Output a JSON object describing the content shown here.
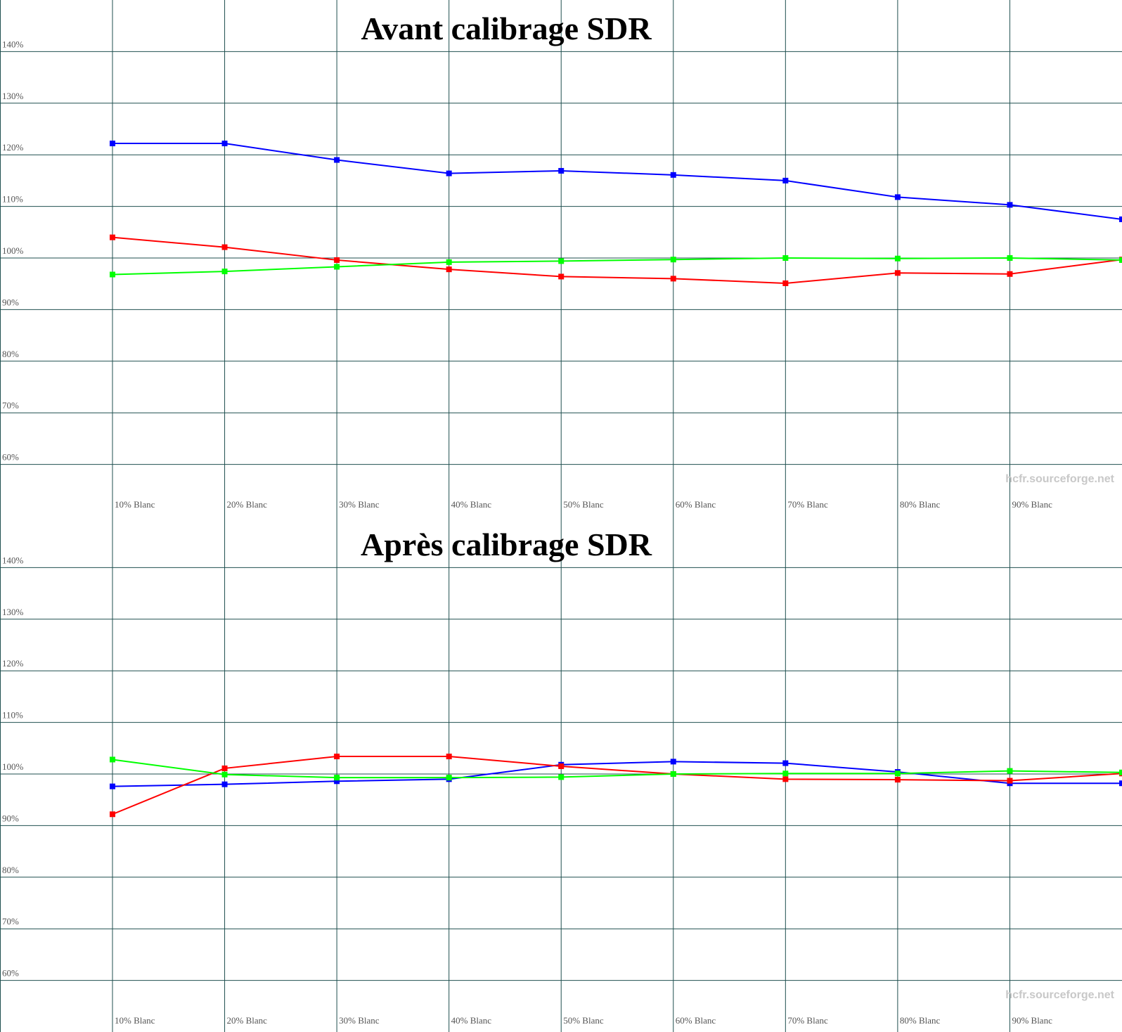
{
  "chart_data": [
    {
      "type": "line",
      "title": "Avant calibrage SDR",
      "watermark": "hcfr.sourceforge.net",
      "categories": [
        "10% Blanc",
        "20% Blanc",
        "30% Blanc",
        "40% Blanc",
        "50% Blanc",
        "60% Blanc",
        "70% Blanc",
        "80% Blanc",
        "90% Blanc",
        null
      ],
      "ylim": [
        50,
        150
      ],
      "yticks": [
        {
          "value": 60,
          "label": "60%"
        },
        {
          "value": 70,
          "label": "70%"
        },
        {
          "value": 80,
          "label": "80%"
        },
        {
          "value": 90,
          "label": "90%"
        },
        {
          "value": 100,
          "label": "100%"
        },
        {
          "value": 110,
          "label": "110%"
        },
        {
          "value": 120,
          "label": "120%"
        },
        {
          "value": 130,
          "label": "130%"
        },
        {
          "value": 140,
          "label": "140%"
        }
      ],
      "reference_line": 100,
      "grid": true,
      "series": [
        {
          "color": "#0000ff",
          "values": [
            122.2,
            122.2,
            119.0,
            116.4,
            116.9,
            116.1,
            115.0,
            111.8,
            110.3,
            107.5
          ]
        },
        {
          "color": "#ff0000",
          "values": [
            104.0,
            102.1,
            99.6,
            97.8,
            96.4,
            96.0,
            95.1,
            97.1,
            96.9,
            99.7
          ]
        },
        {
          "color": "#00ff00",
          "values": [
            96.8,
            97.4,
            98.3,
            99.2,
            99.4,
            99.7,
            100.0,
            99.9,
            100.0,
            99.6
          ]
        }
      ]
    },
    {
      "type": "line",
      "title": "Après calibrage SDR",
      "watermark": "hcfr.sourceforge.net",
      "categories": [
        "10% Blanc",
        "20% Blanc",
        "30% Blanc",
        "40% Blanc",
        "50% Blanc",
        "60% Blanc",
        "70% Blanc",
        "80% Blanc",
        "90% Blanc",
        null
      ],
      "ylim": [
        50,
        150
      ],
      "yticks": [
        {
          "value": 60,
          "label": "60%"
        },
        {
          "value": 70,
          "label": "70%"
        },
        {
          "value": 80,
          "label": "80%"
        },
        {
          "value": 90,
          "label": "90%"
        },
        {
          "value": 100,
          "label": "100%"
        },
        {
          "value": 110,
          "label": "110%"
        },
        {
          "value": 120,
          "label": "120%"
        },
        {
          "value": 130,
          "label": "130%"
        },
        {
          "value": 140,
          "label": "140%"
        }
      ],
      "reference_line": 100,
      "grid": true,
      "series": [
        {
          "color": "#0000ff",
          "values": [
            97.6,
            98.0,
            98.6,
            99.0,
            101.8,
            102.4,
            102.1,
            100.4,
            98.2,
            98.2
          ]
        },
        {
          "color": "#ff0000",
          "values": [
            92.2,
            101.1,
            103.4,
            103.4,
            101.5,
            100.0,
            99.0,
            98.9,
            98.7,
            100.1
          ]
        },
        {
          "color": "#00ff00",
          "values": [
            102.8,
            99.9,
            99.3,
            99.3,
            99.4,
            100.0,
            100.1,
            100.1,
            100.6,
            100.3
          ]
        }
      ]
    }
  ]
}
